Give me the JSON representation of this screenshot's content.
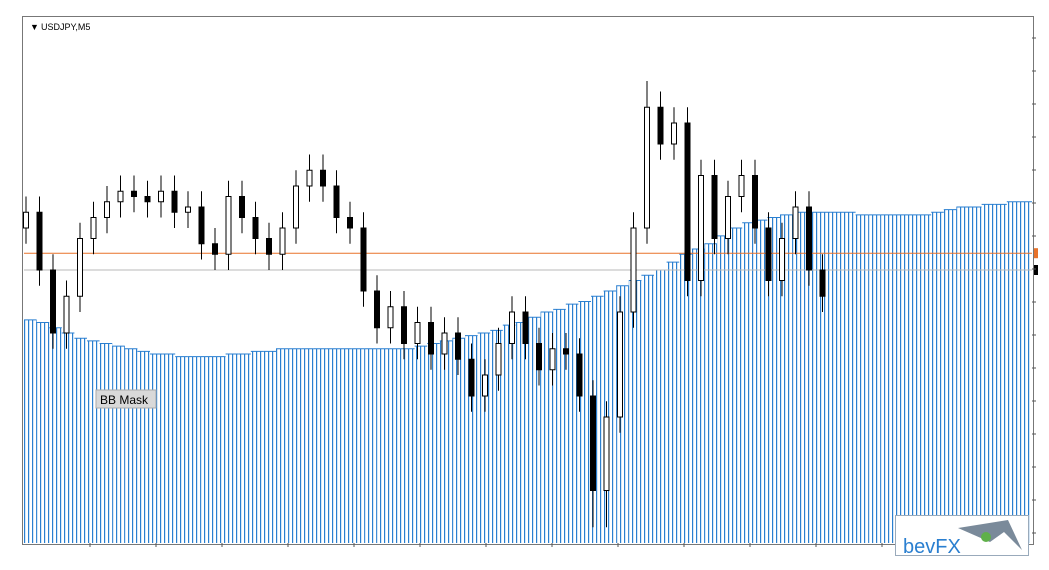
{
  "chart_data": {
    "type": "candlestick",
    "title": "USDJPY,M5",
    "annotations": [
      "BB Mask"
    ],
    "ylim": [
      0,
      100
    ],
    "color": "#000000",
    "up_fill": "#ffffff",
    "open": [
      60,
      63,
      52,
      40,
      47,
      58,
      62,
      65,
      67,
      66,
      65,
      67,
      63,
      64,
      57,
      55,
      66,
      62,
      58,
      55,
      60,
      68,
      71,
      68,
      62,
      60,
      48,
      41,
      45,
      38,
      42,
      36,
      40,
      35,
      28,
      32,
      38,
      44,
      38,
      33,
      37,
      36,
      28,
      10,
      24,
      44,
      60,
      83,
      76,
      80,
      50,
      70,
      58,
      66,
      70,
      60,
      50,
      58,
      64,
      52
    ],
    "high": [
      66,
      66,
      55,
      50,
      61,
      65,
      68,
      70,
      70,
      69,
      70,
      70,
      67,
      67,
      60,
      69,
      69,
      65,
      61,
      63,
      71,
      74,
      74,
      71,
      65,
      63,
      51,
      48,
      48,
      45,
      45,
      43,
      43,
      38,
      35,
      41,
      47,
      47,
      41,
      40,
      40,
      39,
      31,
      27,
      47,
      63,
      88,
      86,
      83,
      83,
      73,
      73,
      69,
      73,
      73,
      63,
      61,
      67,
      67,
      55
    ],
    "low": [
      57,
      49,
      37,
      37,
      44,
      55,
      59,
      62,
      63,
      62,
      62,
      60,
      60,
      54,
      52,
      52,
      59,
      55,
      52,
      52,
      57,
      65,
      65,
      59,
      57,
      45,
      38,
      38,
      35,
      35,
      33,
      33,
      32,
      25,
      25,
      29,
      35,
      35,
      30,
      30,
      33,
      25,
      3,
      3,
      21,
      41,
      57,
      73,
      73,
      47,
      47,
      55,
      55,
      63,
      57,
      47,
      47,
      55,
      49,
      44
    ],
    "close": [
      63,
      52,
      40,
      47,
      58,
      62,
      65,
      67,
      66,
      65,
      67,
      63,
      64,
      57,
      55,
      66,
      62,
      58,
      55,
      60,
      68,
      71,
      68,
      62,
      60,
      48,
      41,
      45,
      38,
      42,
      36,
      40,
      35,
      28,
      32,
      38,
      44,
      38,
      33,
      37,
      36,
      28,
      10,
      24,
      44,
      60,
      83,
      76,
      80,
      50,
      70,
      58,
      66,
      70,
      60,
      50,
      58,
      64,
      52,
      47
    ],
    "mask": {
      "color": "#2a7fd0",
      "values": [
        42.5,
        42,
        41,
        40,
        39,
        38.5,
        38,
        37.5,
        37,
        36.5,
        36,
        36,
        35.5,
        35.5,
        35.5,
        35.5,
        36,
        36,
        36.5,
        36.5,
        37,
        37,
        37,
        37,
        37,
        37,
        37,
        37,
        37,
        37,
        37,
        37.5,
        38,
        38.5,
        39,
        39.5,
        40,
        40.5,
        41.5,
        42,
        43,
        44,
        44.5,
        45.5,
        46,
        47,
        48,
        49,
        50,
        51,
        52,
        53.5,
        55,
        56,
        57,
        58.5,
        60,
        61,
        61.5,
        62,
        62.5,
        63,
        63,
        63,
        63,
        63,
        62.5,
        62.5,
        62.5,
        62.5,
        62.5,
        62.5,
        63,
        63.5,
        64,
        64,
        64.5,
        64.5,
        65,
        65
      ]
    },
    "levels": [
      {
        "value": 55.2,
        "color": "#e8722a"
      },
      {
        "value": 52,
        "color": "#b8b8b8"
      }
    ]
  },
  "logo": {
    "text": "bevFX"
  }
}
